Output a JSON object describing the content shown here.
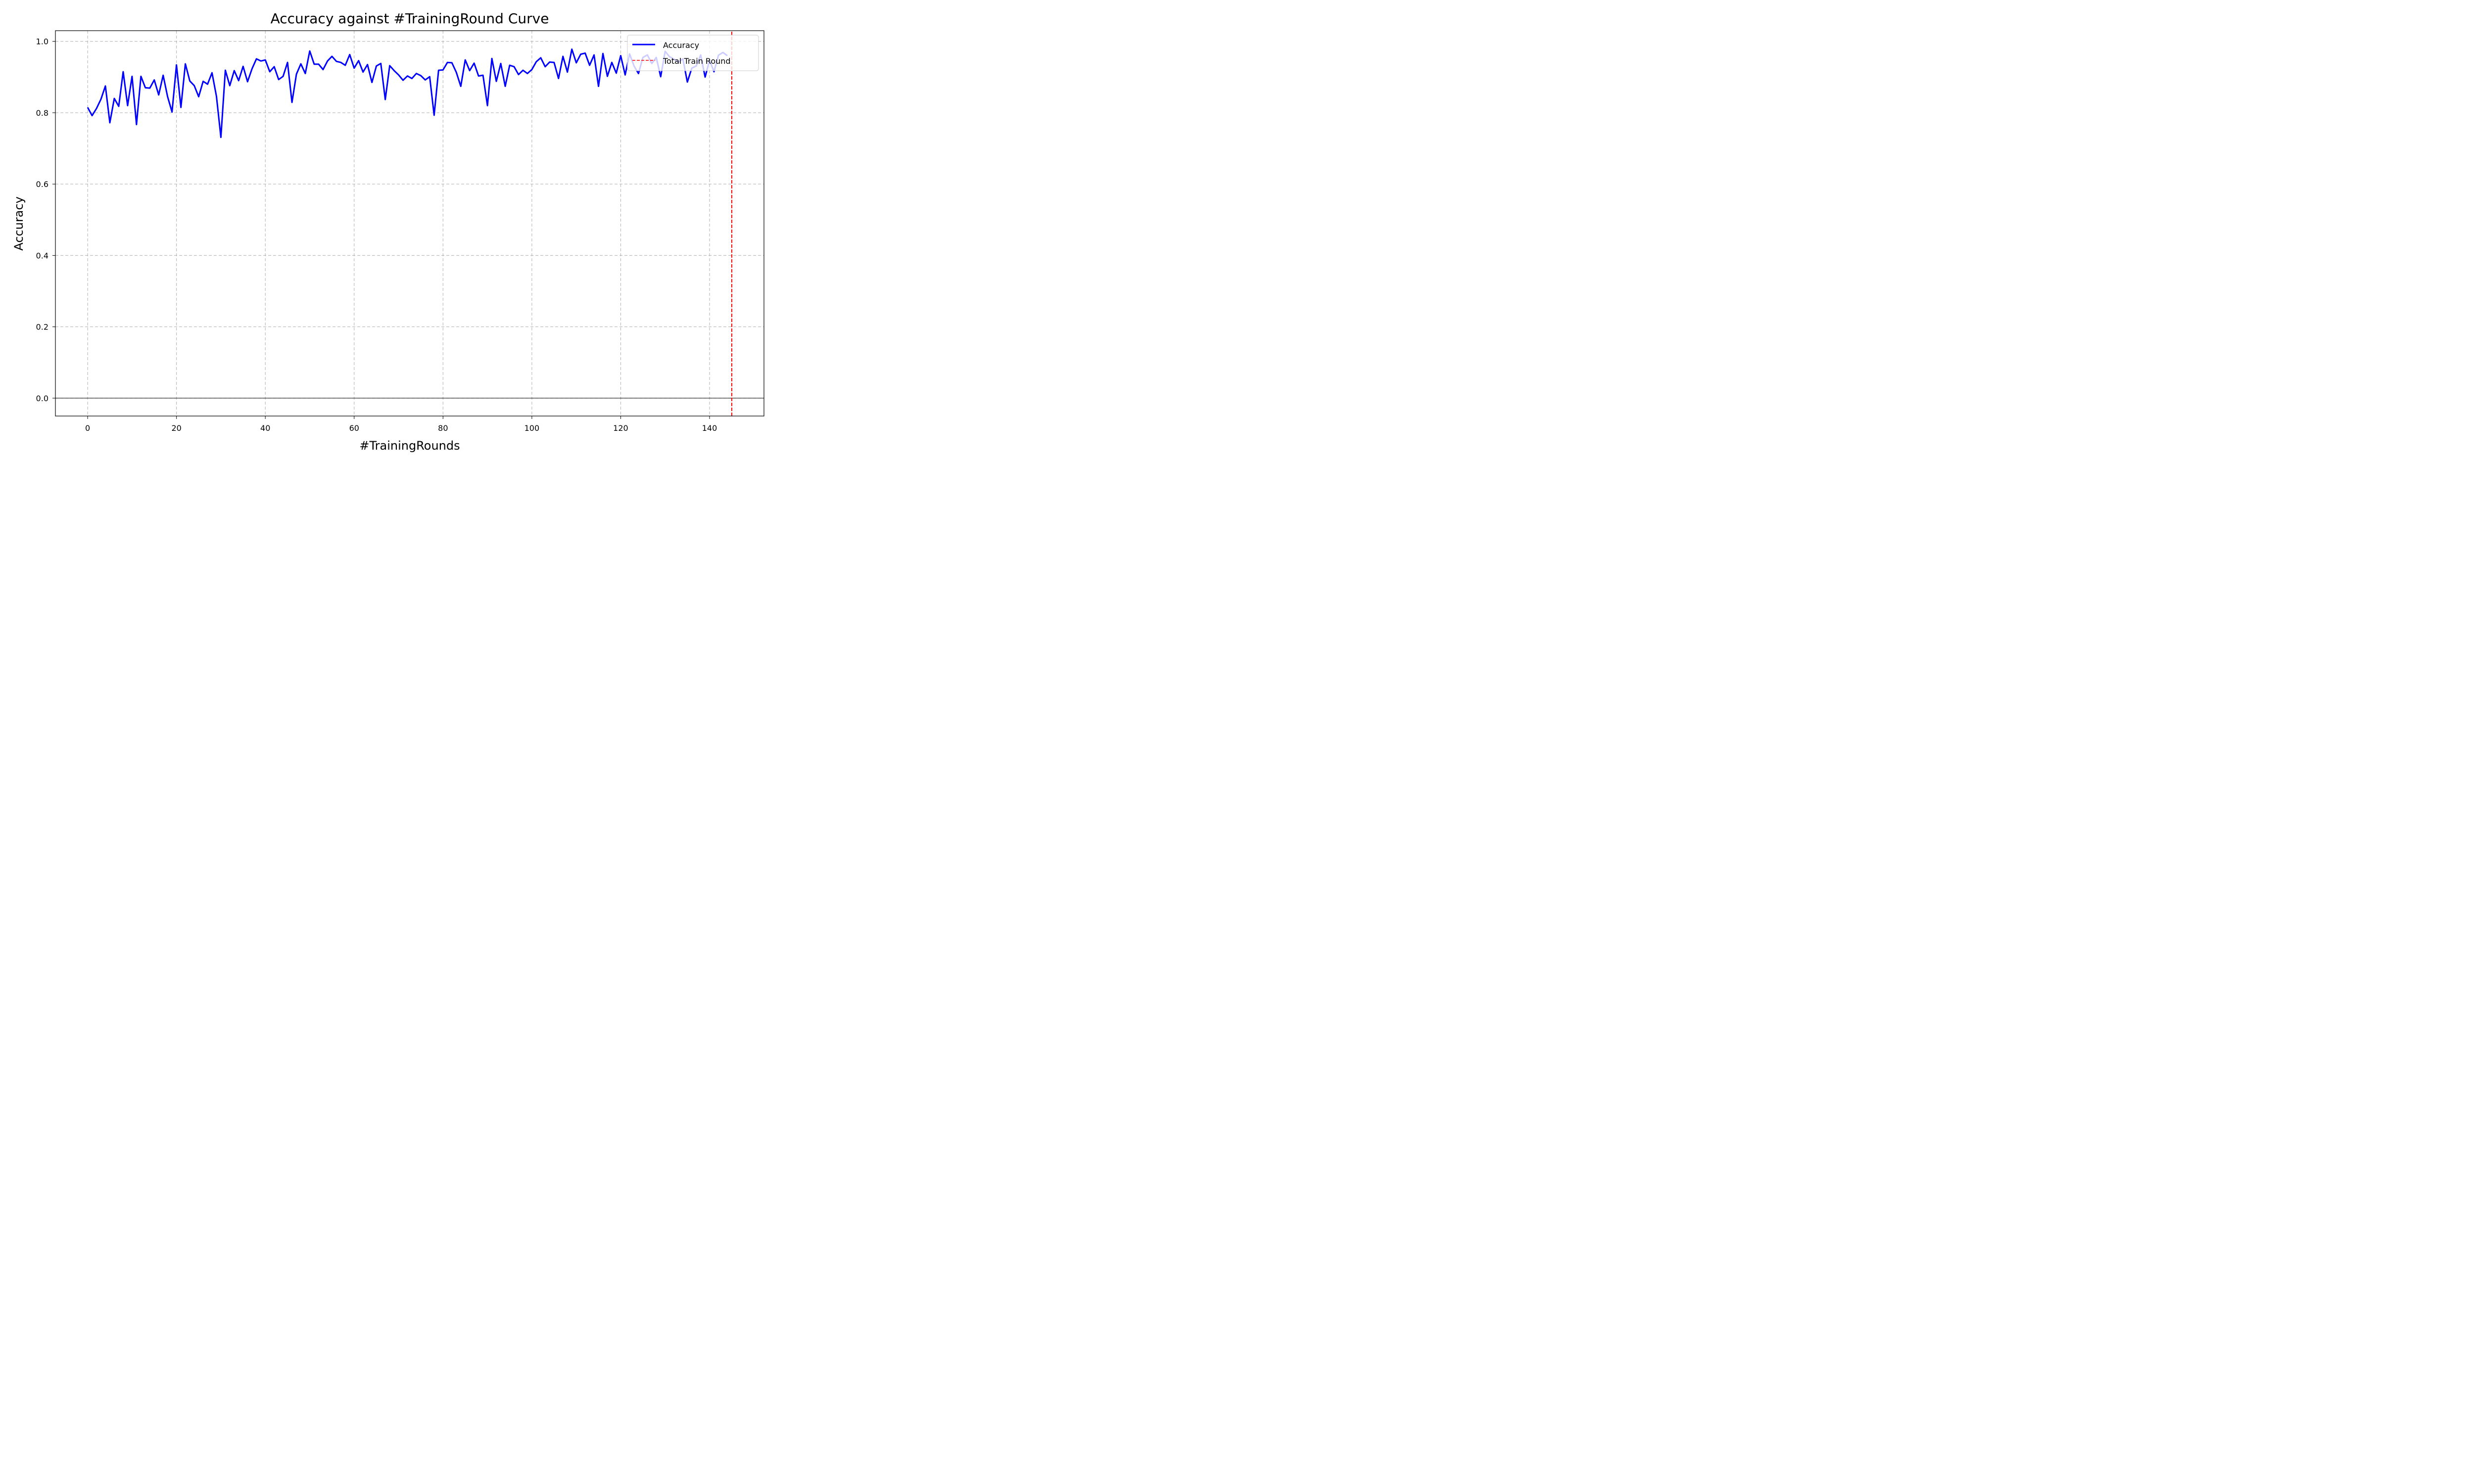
{
  "chart_data": {
    "type": "line",
    "title": "Accuracy against #TrainingRound Curve",
    "xlabel": "#TrainingRounds",
    "ylabel": "Accuracy",
    "xlim": [
      -7.25,
      152.25
    ],
    "ylim": [
      -0.05,
      1.03
    ],
    "x_ticks": [
      0,
      20,
      40,
      60,
      80,
      100,
      120,
      140
    ],
    "y_ticks": [
      0.0,
      0.2,
      0.4,
      0.6,
      0.8,
      1.0
    ],
    "y_tick_labels": [
      "0.0",
      "0.2",
      "0.4",
      "0.6",
      "0.8",
      "1.0"
    ],
    "grid": true,
    "legend_position": "top-right",
    "colors": {
      "accuracy": "#0000ff",
      "total_train_round": "#ff0000",
      "zero_line": "#000000",
      "grid": "#b0b0b0"
    },
    "series": [
      {
        "name": "Accuracy",
        "x": [
          0,
          1,
          2,
          3,
          4,
          5,
          6,
          7,
          8,
          9,
          10,
          11,
          12,
          13,
          14,
          15,
          16,
          17,
          18,
          19,
          20,
          21,
          22,
          23,
          24,
          25,
          26,
          27,
          28,
          29,
          30,
          31,
          32,
          33,
          34,
          35,
          36,
          37,
          38,
          39,
          40,
          41,
          42,
          43,
          44,
          45,
          46,
          47,
          48,
          49,
          50,
          51,
          52,
          53,
          54,
          55,
          56,
          57,
          58,
          59,
          60,
          61,
          62,
          63,
          64,
          65,
          66,
          67,
          68,
          69,
          70,
          71,
          72,
          73,
          74,
          75,
          76,
          77,
          78,
          79,
          80,
          81,
          82,
          83,
          84,
          85,
          86,
          87,
          88,
          89,
          90,
          91,
          92,
          93,
          94,
          95,
          96,
          97,
          98,
          99,
          100,
          101,
          102,
          103,
          104,
          105,
          106,
          107,
          108,
          109,
          110,
          111,
          112,
          113,
          114,
          115,
          116,
          117,
          118,
          119,
          120,
          121,
          122,
          123,
          124,
          125,
          126,
          127,
          128,
          129,
          130,
          131,
          132,
          133,
          134,
          135,
          136,
          137,
          138,
          139,
          140,
          141,
          142,
          143,
          144
        ],
        "values": [
          0.815,
          0.792,
          0.812,
          0.838,
          0.875,
          0.772,
          0.84,
          0.818,
          0.915,
          0.82,
          0.902,
          0.767,
          0.902,
          0.87,
          0.869,
          0.892,
          0.85,
          0.905,
          0.845,
          0.802,
          0.934,
          0.815,
          0.937,
          0.889,
          0.876,
          0.845,
          0.888,
          0.88,
          0.912,
          0.846,
          0.731,
          0.919,
          0.876,
          0.918,
          0.89,
          0.93,
          0.887,
          0.923,
          0.951,
          0.945,
          0.948,
          0.915,
          0.929,
          0.893,
          0.902,
          0.941,
          0.829,
          0.908,
          0.937,
          0.91,
          0.973,
          0.936,
          0.936,
          0.921,
          0.945,
          0.958,
          0.944,
          0.941,
          0.933,
          0.963,
          0.925,
          0.946,
          0.914,
          0.935,
          0.885,
          0.931,
          0.938,
          0.837,
          0.932,
          0.918,
          0.906,
          0.891,
          0.903,
          0.896,
          0.91,
          0.904,
          0.892,
          0.901,
          0.793,
          0.919,
          0.92,
          0.941,
          0.94,
          0.913,
          0.874,
          0.948,
          0.918,
          0.939,
          0.903,
          0.905,
          0.82,
          0.952,
          0.888,
          0.938,
          0.874,
          0.933,
          0.929,
          0.907,
          0.919,
          0.91,
          0.921,
          0.943,
          0.954,
          0.929,
          0.942,
          0.941,
          0.896,
          0.958,
          0.914,
          0.978,
          0.94,
          0.964,
          0.967,
          0.933,
          0.962,
          0.874,
          0.966,
          0.902,
          0.941,
          0.911,
          0.96,
          0.906,
          0.965,
          0.931,
          0.91,
          0.955,
          0.962,
          0.938,
          0.955,
          0.901,
          0.972,
          0.957,
          0.95,
          0.942,
          0.951,
          0.886,
          0.925,
          0.931,
          0.962,
          0.9,
          0.947,
          0.915,
          0.961,
          0.969,
          0.96
        ]
      },
      {
        "name": "Total Train Round",
        "x": [
          145,
          145
        ],
        "values": [
          -0.05,
          1.03
        ]
      }
    ]
  }
}
